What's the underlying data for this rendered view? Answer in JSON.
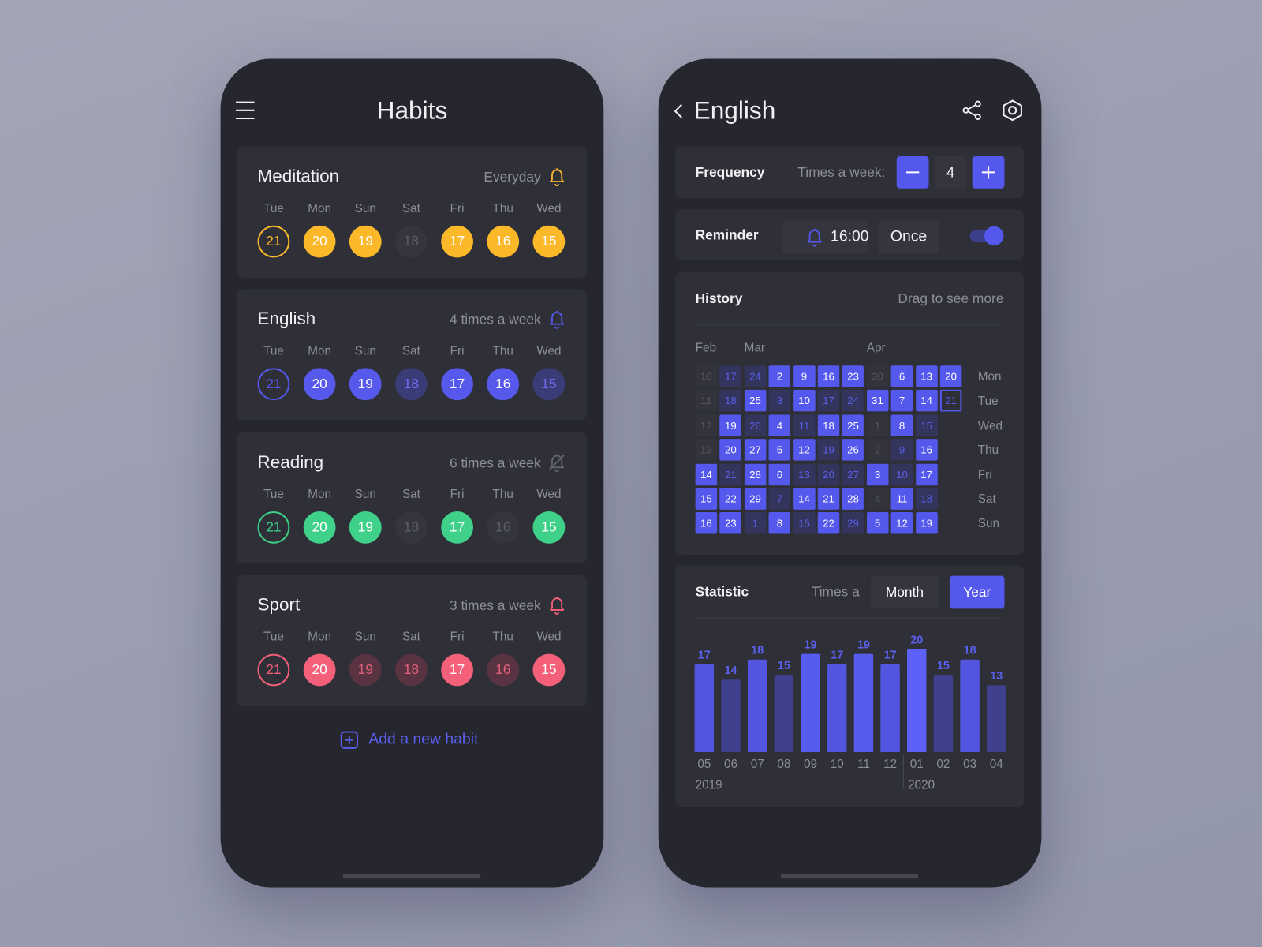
{
  "habits_screen": {
    "title": "Habits",
    "weekdays": [
      "Tue",
      "Mon",
      "Sun",
      "Sat",
      "Fri",
      "Thu",
      "Wed"
    ],
    "dates": [
      21,
      20,
      19,
      18,
      17,
      16,
      15
    ],
    "habits": [
      {
        "name": "Meditation",
        "frequency": "Everyday",
        "reminder": true,
        "color": "#fbb829",
        "missed_color": "#35363d",
        "missed_text": "#5c5d65",
        "status": [
          "today",
          "done",
          "done",
          "missed",
          "done",
          "done",
          "done"
        ]
      },
      {
        "name": "English",
        "frequency": "4 times a week",
        "reminder": true,
        "color": "#5659ec",
        "missed_color": "#3a3c78",
        "missed_text": "#6d70f2",
        "status": [
          "today",
          "done",
          "done",
          "missed",
          "done",
          "done",
          "missed"
        ]
      },
      {
        "name": "Reading",
        "frequency": "6 times a week",
        "reminder": false,
        "color": "#3fd08a",
        "missed_color": "#35363d",
        "missed_text": "#5c5d65",
        "status": [
          "today",
          "done",
          "done",
          "missed",
          "done",
          "missed",
          "done"
        ]
      },
      {
        "name": "Sport",
        "frequency": "3 times a week",
        "reminder": true,
        "color": "#f4607a",
        "missed_color": "#5a3342",
        "missed_text": "#e0607a",
        "status": [
          "today",
          "done",
          "missed",
          "missed",
          "done",
          "missed",
          "done"
        ]
      }
    ],
    "add_button": "Add a new habit"
  },
  "detail_screen": {
    "title": "English",
    "frequency": {
      "label": "Frequency",
      "unit_label": "Times a week:",
      "value": 4
    },
    "reminder": {
      "label": "Reminder",
      "time": "16:00",
      "repeat": "Once",
      "enabled": true
    },
    "history": {
      "title": "History",
      "hint": "Drag to see more",
      "months": [
        "Feb",
        null,
        "Mar",
        null,
        null,
        null,
        null,
        "Apr",
        null,
        null,
        null
      ],
      "weekdays": [
        "Mon",
        "Tue",
        "Wed",
        "Thu",
        "Fri",
        "Sat",
        "Sun"
      ],
      "weeks": [
        {
          "days": [
            10,
            11,
            12,
            13,
            14,
            15,
            16
          ],
          "state": [
            "none",
            "none",
            "none",
            "none",
            "on",
            "on",
            "on"
          ]
        },
        {
          "days": [
            17,
            18,
            19,
            20,
            21,
            22,
            23
          ],
          "state": [
            "off",
            "off",
            "on",
            "on",
            "off",
            "on",
            "on"
          ]
        },
        {
          "days": [
            24,
            25,
            26,
            27,
            28,
            29,
            1
          ],
          "state": [
            "off",
            "on",
            "off",
            "on",
            "on",
            "on",
            "off"
          ]
        },
        {
          "days": [
            2,
            3,
            4,
            5,
            6,
            7,
            8
          ],
          "state": [
            "on",
            "off",
            "on",
            "on",
            "on",
            "off",
            "on"
          ]
        },
        {
          "days": [
            9,
            10,
            11,
            12,
            13,
            14,
            15
          ],
          "state": [
            "on",
            "on",
            "off",
            "on",
            "off",
            "on",
            "off"
          ]
        },
        {
          "days": [
            16,
            17,
            18,
            19,
            20,
            21,
            22
          ],
          "state": [
            "on",
            "off",
            "on",
            "off",
            "off",
            "on",
            "on"
          ]
        },
        {
          "days": [
            23,
            24,
            25,
            26,
            27,
            28,
            29
          ],
          "state": [
            "on",
            "off",
            "on",
            "on",
            "off",
            "on",
            "off"
          ]
        },
        {
          "days": [
            30,
            31,
            1,
            2,
            3,
            4,
            5
          ],
          "state": [
            "none",
            "on",
            "none",
            "none",
            "on",
            "none",
            "on"
          ]
        },
        {
          "days": [
            6,
            7,
            8,
            9,
            10,
            11,
            12
          ],
          "state": [
            "on",
            "on",
            "on",
            "off",
            "off",
            "on",
            "on"
          ]
        },
        {
          "days": [
            13,
            14,
            15,
            16,
            17,
            18,
            19
          ],
          "state": [
            "on",
            "on",
            "off",
            "on",
            "on",
            "off",
            "on"
          ]
        },
        {
          "days": [
            20,
            21
          ],
          "state": [
            "on",
            "today"
          ]
        }
      ]
    },
    "statistic": {
      "title": "Statistic",
      "period_label": "Times a",
      "options": [
        "Month",
        "Year"
      ],
      "selected_option": 1,
      "categories": [
        "05",
        "06",
        "07",
        "08",
        "09",
        "10",
        "11",
        "12",
        "01",
        "02",
        "03",
        "04"
      ],
      "years": [
        "2019",
        null,
        null,
        null,
        null,
        null,
        null,
        null,
        "2020",
        null,
        null,
        null
      ],
      "values": [
        17,
        14,
        18,
        15,
        19,
        17,
        19,
        17,
        20,
        15,
        18,
        13
      ],
      "colors": [
        "#5155e0",
        "#3f418f",
        "#5155e0",
        "#3f418f",
        "#575bf0",
        "#5155e0",
        "#575bf0",
        "#5155e0",
        "#5d61f8",
        "#3f418f",
        "#5155e0",
        "#3f418f"
      ]
    }
  }
}
